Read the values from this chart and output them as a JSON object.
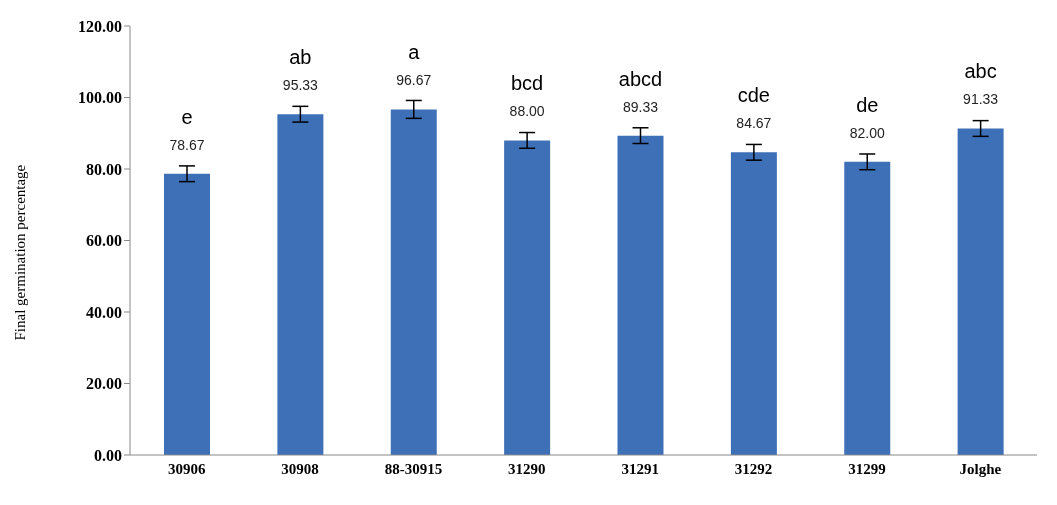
{
  "chart_data": {
    "type": "bar",
    "ylabel": "Final germination percentage",
    "categories": [
      "30906",
      "30908",
      "88-30915",
      "31290",
      "31291",
      "31292",
      "31299",
      "Jolghe"
    ],
    "values": [
      78.67,
      95.33,
      96.67,
      88.0,
      89.33,
      84.67,
      82.0,
      91.33
    ],
    "value_labels": [
      "78.67",
      "95.33",
      "96.67",
      "88.00",
      "89.33",
      "84.67",
      "82.00",
      "91.33"
    ],
    "errors": [
      2.2,
      2.2,
      2.5,
      2.2,
      2.2,
      2.2,
      2.2,
      2.2
    ],
    "color": "#3e70b8",
    "ylim": [
      0,
      120
    ],
    "yticks": [
      {
        "value": 0,
        "label": "0.00"
      },
      {
        "value": 20,
        "label": "20.00"
      },
      {
        "value": 40,
        "label": "40.00"
      },
      {
        "value": 60,
        "label": "60.00"
      },
      {
        "value": 80,
        "label": "80.00"
      },
      {
        "value": 100,
        "label": "100.00"
      },
      {
        "value": 120,
        "label": "120.00"
      }
    ],
    "annotations": [
      "e",
      "ab",
      "a",
      "bcd",
      "abcd",
      "cde",
      "de",
      "abc"
    ],
    "grid": false,
    "legend": false
  }
}
